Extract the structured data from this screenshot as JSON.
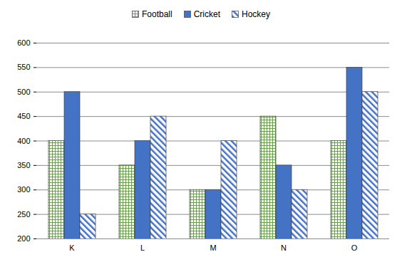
{
  "chart_data": {
    "type": "bar",
    "categories": [
      "K",
      "L",
      "M",
      "N",
      "O"
    ],
    "series": [
      {
        "name": "Football",
        "color": "#6a9f4f",
        "values": [
          400,
          350,
          300,
          450,
          400
        ]
      },
      {
        "name": "Cricket",
        "color": "#4472c4",
        "values": [
          500,
          400,
          300,
          350,
          550
        ]
      },
      {
        "name": "Hockey",
        "color": "#4472c4",
        "values": [
          250,
          450,
          400,
          300,
          500
        ]
      }
    ],
    "ylim": [
      200,
      600
    ],
    "yticks": [
      200,
      250,
      300,
      350,
      400,
      450,
      500,
      550,
      600
    ],
    "grid": true,
    "legend": "top"
  }
}
